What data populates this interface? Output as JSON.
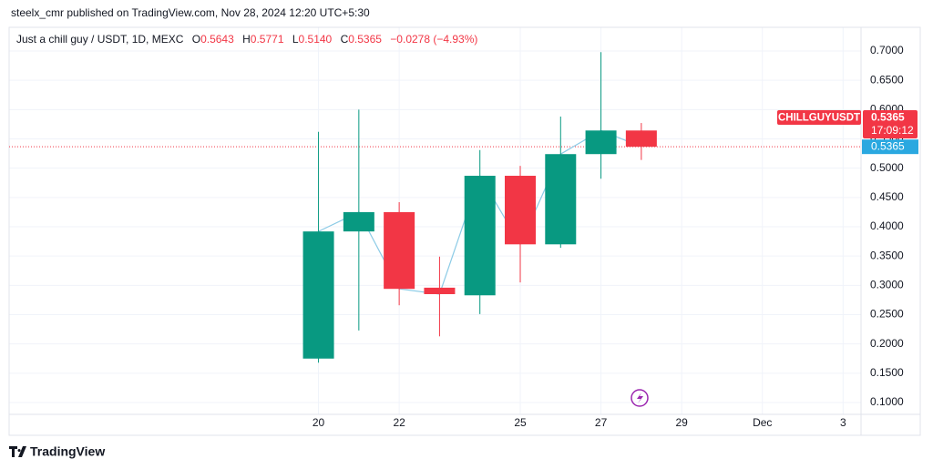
{
  "header": {
    "byline": "steelx_cmr published on TradingView.com, Nov 28, 2024 12:20 UTC+5:30"
  },
  "footer": {
    "brand": "TradingView"
  },
  "chart_data": {
    "type": "candlestick",
    "legend": {
      "symbol": "Just a chill guy / USDT, 1D, MEXC",
      "keys": [
        "O",
        "H",
        "L",
        "C"
      ],
      "values": [
        "0.5643",
        "0.5771",
        "0.5140",
        "0.5365"
      ],
      "change": "−0.0278 (−4.93%)"
    },
    "x": [
      "2024-11-20",
      "2024-11-21",
      "2024-11-22",
      "2024-11-23",
      "2024-11-24",
      "2024-11-25",
      "2024-11-26",
      "2024-11-27",
      "2024-11-28"
    ],
    "open": [
      0.175,
      0.392,
      0.425,
      0.296,
      0.283,
      0.487,
      0.37,
      0.524,
      0.5643
    ],
    "high": [
      0.562,
      0.6,
      0.442,
      0.349,
      0.531,
      0.504,
      0.588,
      0.698,
      0.5771
    ],
    "low": [
      0.168,
      0.223,
      0.266,
      0.213,
      0.251,
      0.305,
      0.364,
      0.482,
      0.514
    ],
    "close": [
      0.392,
      0.425,
      0.294,
      0.285,
      0.487,
      0.37,
      0.524,
      0.5643,
      0.5365
    ],
    "up_color": "#089981",
    "down_color": "#f23645",
    "line_color": "#8ccbe6",
    "last_price": {
      "value": 0.5365,
      "label": "0.5365"
    },
    "symbol_tag": "CHILLGUYUSDT",
    "countdown": "17:09:12",
    "xlim": [
      "2024-11-12T08:00:00Z",
      "2024-12-03T10:40:00Z"
    ],
    "xticks": [
      {
        "value": "2024-11-20",
        "label": "20"
      },
      {
        "value": "2024-11-22",
        "label": "22"
      },
      {
        "value": "2024-11-25",
        "label": "25"
      },
      {
        "value": "2024-11-27",
        "label": "27"
      },
      {
        "value": "2024-11-29",
        "label": "29"
      },
      {
        "value": "2024-12-01",
        "label": "Dec"
      },
      {
        "value": "2024-12-03",
        "label": "3"
      }
    ],
    "ylim": [
      0.0798,
      0.7404
    ],
    "yticks": [
      {
        "value": 0.1,
        "label": "0.1000"
      },
      {
        "value": 0.15,
        "label": "0.1500"
      },
      {
        "value": 0.2,
        "label": "0.2000"
      },
      {
        "value": 0.25,
        "label": "0.2500"
      },
      {
        "value": 0.3,
        "label": "0.3000"
      },
      {
        "value": 0.35,
        "label": "0.3500"
      },
      {
        "value": 0.4,
        "label": "0.4000"
      },
      {
        "value": 0.45,
        "label": "0.4500"
      },
      {
        "value": 0.5,
        "label": "0.5000"
      },
      {
        "value": 0.55,
        "label": "0.5500"
      },
      {
        "value": 0.6,
        "label": "0.6000"
      },
      {
        "value": 0.65,
        "label": "0.6500"
      },
      {
        "value": 0.7,
        "label": "0.7000"
      }
    ],
    "grid": true
  }
}
